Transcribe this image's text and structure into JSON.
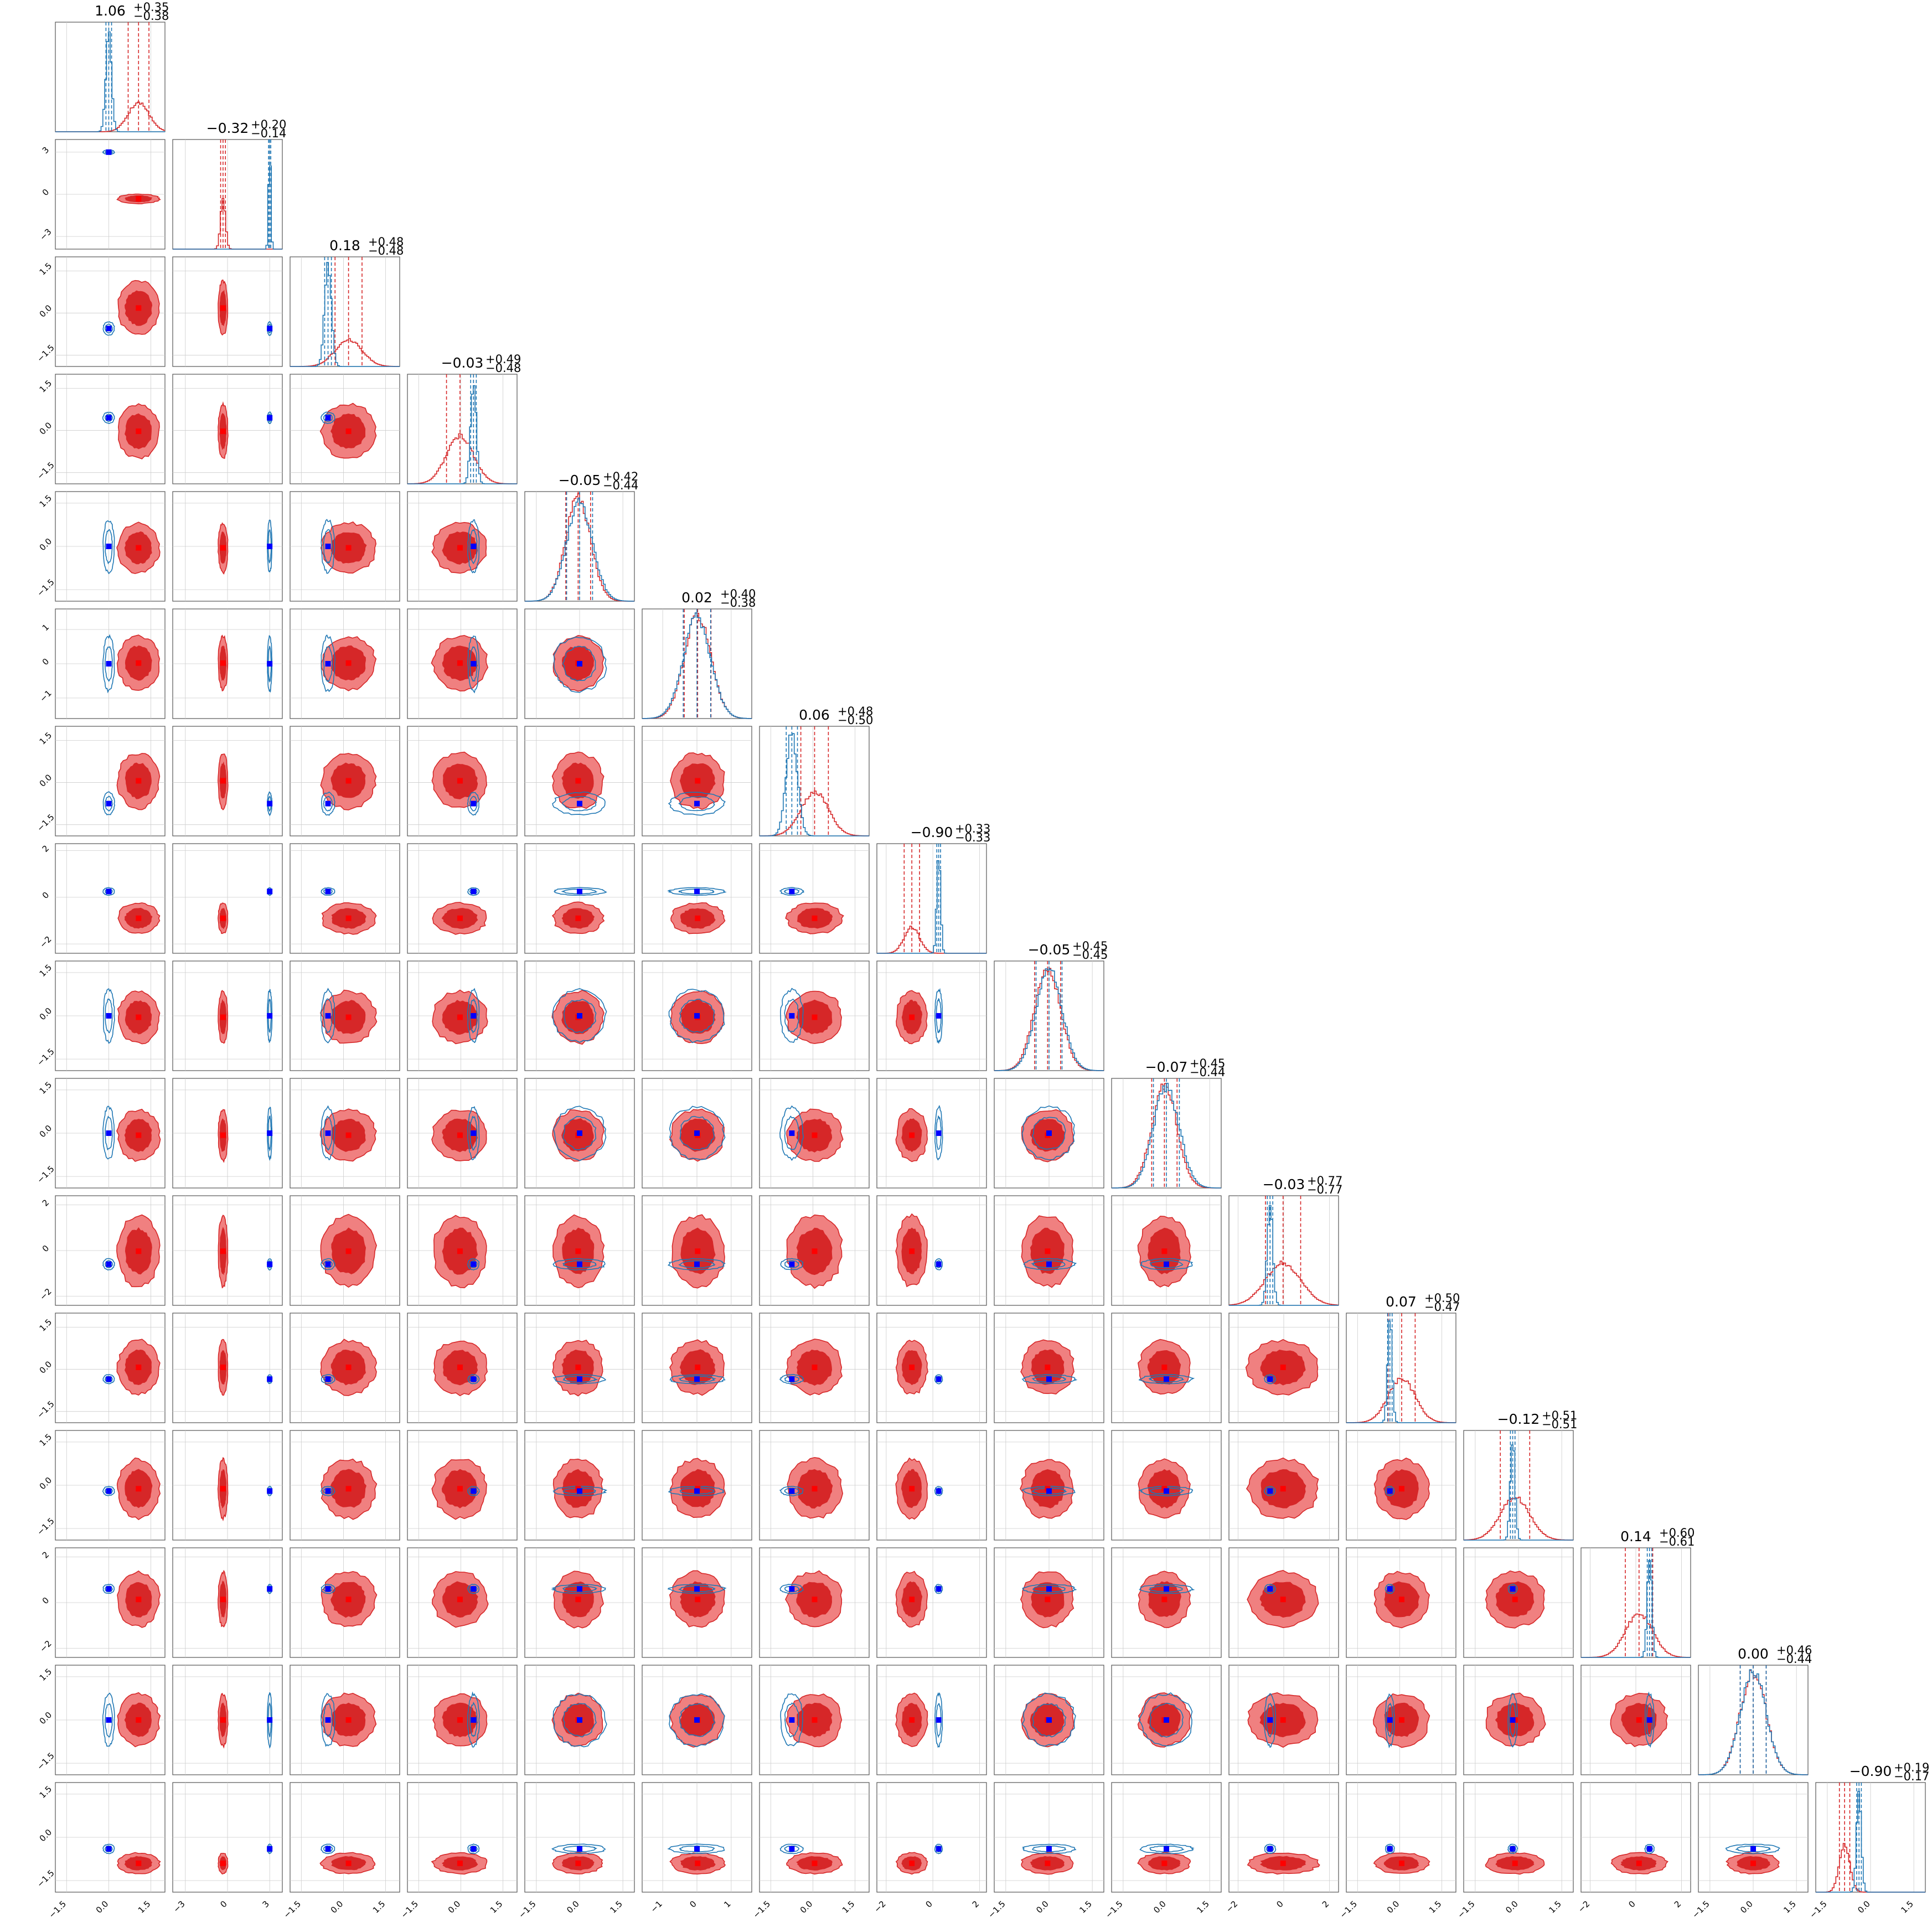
{
  "chart_data": {
    "type": "corner",
    "n_params": 16,
    "colors": {
      "red_fill_light": "#f08080",
      "red_fill_dark": "#d62728",
      "red_line": "#d62728",
      "blue_line": "#1f77b4",
      "marker_red": "#ff0000",
      "marker_blue": "#0000ff"
    },
    "series": [
      {
        "color": "red"
      },
      {
        "color": "blue"
      }
    ],
    "titles": [
      {
        "value": "1.06",
        "plus": "+0.35",
        "minus": "−0.38"
      },
      {
        "value": "−0.32",
        "plus": "+0.20",
        "minus": "−0.14"
      },
      {
        "value": "0.18",
        "plus": "+0.48",
        "minus": "−0.48"
      },
      {
        "value": "−0.03",
        "plus": "+0.49",
        "minus": "−0.48"
      },
      {
        "value": "−0.05",
        "plus": "+0.42",
        "minus": "−0.44"
      },
      {
        "value": "0.02",
        "plus": "+0.40",
        "minus": "−0.38"
      },
      {
        "value": "0.06",
        "plus": "+0.48",
        "minus": "−0.50"
      },
      {
        "value": "−0.90",
        "plus": "+0.33",
        "minus": "−0.33"
      },
      {
        "value": "−0.05",
        "plus": "+0.45",
        "minus": "−0.45"
      },
      {
        "value": "−0.07",
        "plus": "+0.45",
        "minus": "−0.44"
      },
      {
        "value": "−0.03",
        "plus": "+0.77",
        "minus": "−0.77"
      },
      {
        "value": "0.07",
        "plus": "+0.50",
        "minus": "−0.47"
      },
      {
        "value": "−0.12",
        "plus": "+0.51",
        "minus": "−0.51"
      },
      {
        "value": "0.14",
        "plus": "+0.60",
        "minus": "−0.61"
      },
      {
        "value": "0.00",
        "plus": "+0.46",
        "minus": "−0.44"
      },
      {
        "value": "−0.90",
        "plus": "+0.19",
        "minus": "−0.17"
      }
    ],
    "params": [
      {
        "range": [
          -1.9,
          2.0
        ],
        "ticks": [
          "−1.5",
          "0.0",
          "1.5"
        ],
        "tickvals": [
          -1.5,
          0,
          1.5
        ],
        "red": [
          1.06,
          0.37
        ],
        "blue": [
          0.0,
          0.1
        ]
      },
      {
        "range": [
          -3.9,
          3.9
        ],
        "ticks": [
          "−3",
          "0",
          "3"
        ],
        "tickvals": [
          -3,
          0,
          3
        ],
        "red": [
          -0.32,
          0.17
        ],
        "blue": [
          3.0,
          0.08
        ]
      },
      {
        "range": [
          -1.9,
          2.0
        ],
        "ticks": [
          "−1.5",
          "0.0",
          "1.5"
        ],
        "tickvals": [
          -1.5,
          0,
          1.5
        ],
        "red": [
          0.18,
          0.48
        ],
        "blue": [
          -0.55,
          0.12
        ]
      },
      {
        "range": [
          -1.9,
          2.0
        ],
        "ticks": [
          "−1.5",
          "0.0",
          "1.5"
        ],
        "tickvals": [
          -1.5,
          0,
          1.5
        ],
        "red": [
          -0.03,
          0.48
        ],
        "blue": [
          0.45,
          0.1
        ]
      },
      {
        "range": [
          -1.9,
          1.9
        ],
        "ticks": [
          "−1.5",
          "0.0",
          "1.5"
        ],
        "tickvals": [
          -1.5,
          0,
          1.5
        ],
        "red": [
          -0.05,
          0.43
        ],
        "blue": [
          0.0,
          0.45
        ]
      },
      {
        "range": [
          -1.6,
          1.6
        ],
        "ticks": [
          "−1",
          "0",
          "1"
        ],
        "tickvals": [
          -1,
          0,
          1
        ],
        "red": [
          0.02,
          0.39
        ],
        "blue": [
          0.0,
          0.4
        ]
      },
      {
        "range": [
          -1.9,
          2.0
        ],
        "ticks": [
          "−1.5",
          "0.0",
          "1.5"
        ],
        "tickvals": [
          -1.5,
          0,
          1.5
        ],
        "red": [
          0.06,
          0.49
        ],
        "blue": [
          -0.75,
          0.2
        ]
      },
      {
        "range": [
          -2.4,
          2.3
        ],
        "ticks": [
          "−2",
          "0",
          "2"
        ],
        "tickvals": [
          -2,
          0,
          2
        ],
        "red": [
          -0.9,
          0.33
        ],
        "blue": [
          0.25,
          0.08
        ]
      },
      {
        "range": [
          -1.9,
          1.9
        ],
        "ticks": [
          "−1.5",
          "0.0",
          "1.5"
        ],
        "tickvals": [
          -1.5,
          0,
          1.5
        ],
        "red": [
          -0.05,
          0.45
        ],
        "blue": [
          0.0,
          0.45
        ]
      },
      {
        "range": [
          -1.9,
          1.9
        ],
        "ticks": [
          "−1.5",
          "0.0",
          "1.5"
        ],
        "tickvals": [
          -1.5,
          0,
          1.5
        ],
        "red": [
          -0.07,
          0.44
        ],
        "blue": [
          0.0,
          0.45
        ]
      },
      {
        "range": [
          -2.4,
          2.4
        ],
        "ticks": [
          "−2",
          "0",
          "2"
        ],
        "tickvals": [
          -2,
          0,
          2
        ],
        "red": [
          -0.03,
          0.77
        ],
        "blue": [
          -0.6,
          0.12
        ]
      },
      {
        "range": [
          -1.9,
          2.0
        ],
        "ticks": [
          "−1.5",
          "0.0",
          "1.5"
        ],
        "tickvals": [
          -1.5,
          0,
          1.5
        ],
        "red": [
          0.07,
          0.48
        ],
        "blue": [
          -0.35,
          0.08
        ]
      },
      {
        "range": [
          -1.9,
          1.9
        ],
        "ticks": [
          "−1.5",
          "0.0",
          "1.5"
        ],
        "tickvals": [
          -1.5,
          0,
          1.5
        ],
        "red": [
          -0.12,
          0.51
        ],
        "blue": [
          -0.2,
          0.08
        ]
      },
      {
        "range": [
          -2.4,
          2.4
        ],
        "ticks": [
          "−2",
          "0",
          "2"
        ],
        "tickvals": [
          -2,
          0,
          2
        ],
        "red": [
          0.14,
          0.6
        ],
        "blue": [
          0.6,
          0.1
        ]
      },
      {
        "range": [
          -1.9,
          1.9
        ],
        "ticks": [
          "−1.5",
          "0.0",
          "1.5"
        ],
        "tickvals": [
          -1.5,
          0,
          1.5
        ],
        "red": [
          0.0,
          0.45
        ],
        "blue": [
          0.0,
          0.45
        ]
      },
      {
        "range": [
          -1.9,
          1.9
        ],
        "ticks": [
          "−1.5",
          "0.0",
          "1.5"
        ],
        "tickvals": [
          -1.5,
          0,
          1.5
        ],
        "red": [
          -0.9,
          0.18
        ],
        "blue": [
          -0.4,
          0.08
        ]
      }
    ]
  }
}
